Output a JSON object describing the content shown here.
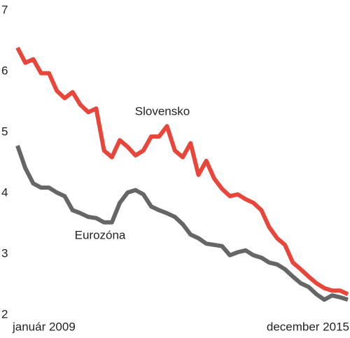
{
  "chart_data": {
    "type": "line",
    "categories": [
      "január 2009",
      null,
      null,
      null,
      null,
      null,
      null,
      null,
      null,
      null,
      null,
      null,
      null,
      null,
      null,
      null,
      null,
      null,
      null,
      null,
      null,
      null,
      null,
      null,
      null,
      null,
      null,
      null,
      null,
      null,
      null,
      null,
      null,
      null,
      null,
      null,
      null,
      null,
      null,
      null,
      null,
      null,
      "december 2015"
    ],
    "series": [
      {
        "name": "Slovensko",
        "color": "#e8463a",
        "values": [
          6.39,
          6.14,
          6.2,
          5.97,
          5.97,
          5.68,
          5.56,
          5.66,
          5.45,
          5.33,
          5.39,
          4.7,
          4.59,
          4.87,
          4.76,
          4.62,
          4.7,
          4.93,
          4.93,
          5.1,
          4.7,
          4.59,
          4.82,
          4.3,
          4.53,
          4.24,
          4.07,
          3.95,
          3.98,
          3.9,
          3.84,
          3.72,
          3.44,
          3.26,
          3.15,
          2.86,
          2.75,
          2.63,
          2.52,
          2.44,
          2.4,
          2.4,
          2.34
        ]
      },
      {
        "name": "Eurozóna",
        "color": "#666666",
        "values": [
          4.78,
          4.41,
          4.16,
          4.09,
          4.09,
          4.01,
          3.95,
          3.72,
          3.67,
          3.61,
          3.59,
          3.52,
          3.52,
          3.84,
          4.01,
          4.05,
          3.98,
          3.78,
          3.72,
          3.67,
          3.61,
          3.49,
          3.32,
          3.26,
          3.17,
          3.15,
          3.13,
          2.98,
          3.03,
          3.06,
          2.98,
          2.94,
          2.86,
          2.83,
          2.75,
          2.63,
          2.52,
          2.46,
          2.34,
          2.25,
          2.32,
          2.29,
          2.25
        ]
      }
    ],
    "ylim": [
      2,
      7
    ],
    "yticks": [
      2,
      3,
      4,
      5,
      6,
      7
    ]
  }
}
